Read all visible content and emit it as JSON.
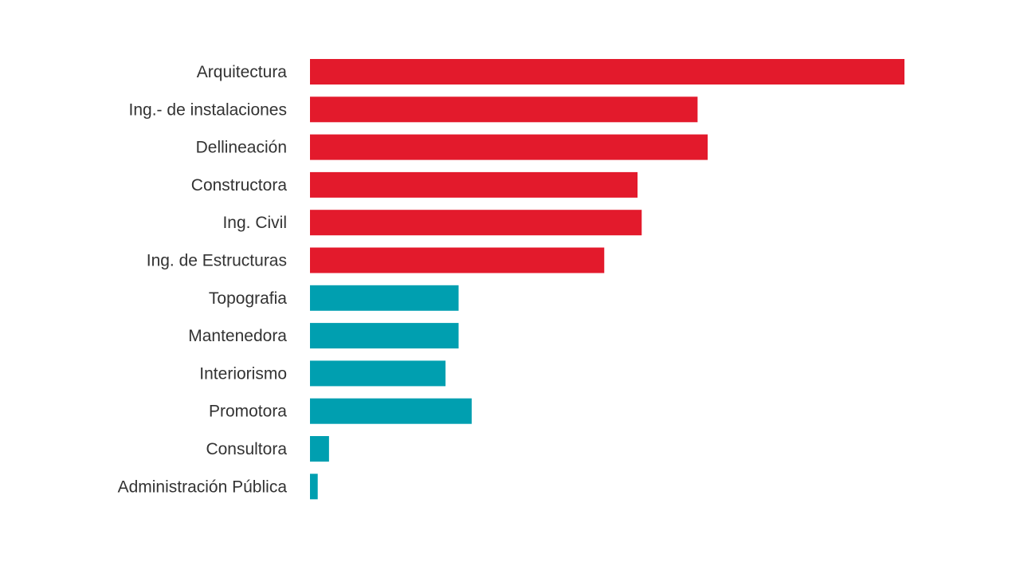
{
  "chart_data": {
    "type": "bar",
    "orientation": "horizontal",
    "categories": [
      "Arquitectura",
      "Ing.- de instalaciones",
      "Dellineación",
      "Constructora",
      "Ing. Civil",
      "Ing. de Estructuras",
      "Topografia",
      "Mantenedora",
      "Interiorismo",
      "Promotora",
      "Consultora",
      "Administración Pública"
    ],
    "values": [
      100,
      65.2,
      66.9,
      55.1,
      55.8,
      49.5,
      25,
      25,
      22.8,
      27.2,
      3.2,
      1.3
    ],
    "colors": [
      "#e31a2c",
      "#e31a2c",
      "#e31a2c",
      "#e31a2c",
      "#e31a2c",
      "#e31a2c",
      "#009fb0",
      "#009fb0",
      "#009fb0",
      "#009fb0",
      "#009fb0",
      "#009fb0"
    ],
    "xlim": [
      0,
      100
    ],
    "grid": false,
    "legend": "none",
    "title": "",
    "xlabel": "",
    "ylabel": ""
  }
}
